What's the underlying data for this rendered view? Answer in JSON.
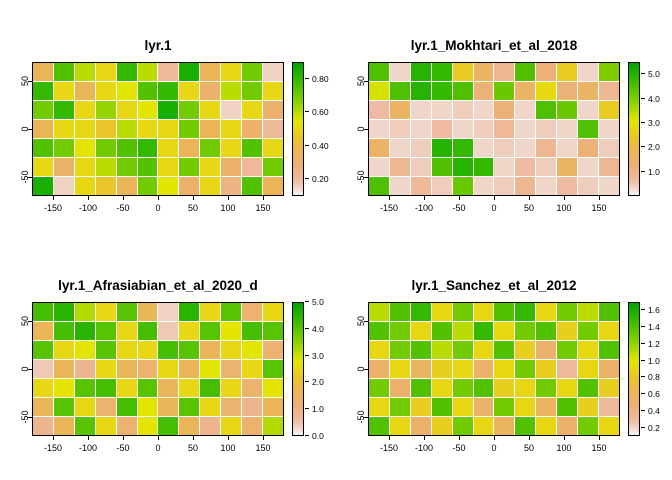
{
  "figure": {
    "background": "#ffffff",
    "grid_shape": "2x2 raster heatmap panels"
  },
  "palette": [
    "#F2F2F2",
    "#EEB99F",
    "#ECB176",
    "#EAB64E",
    "#E8C727",
    "#E6E600",
    "#A0D600",
    "#63C600",
    "#2DB600",
    "#00A600"
  ],
  "axes": {
    "x_ticks": [
      -150,
      -100,
      -50,
      0,
      50,
      100,
      150
    ],
    "y_ticks": [
      50,
      0,
      -50
    ],
    "x_range": [
      -180,
      180
    ],
    "y_range": [
      -70,
      70
    ]
  },
  "chart_data": [
    {
      "type": "heatmap",
      "title": "lyr.1",
      "zlim": [
        0.1,
        0.9
      ],
      "legend": {
        "values": [
          0.2,
          0.4,
          0.6,
          0.8
        ],
        "labels": [
          "0.20",
          "0.40",
          "0.60",
          "0.80"
        ],
        "position": "right"
      },
      "values": [
        [
          0.35,
          0.75,
          0.6,
          0.5,
          0.8,
          0.6,
          0.2,
          0.85,
          0.35,
          0.5,
          0.7,
          0.15
        ],
        [
          0.8,
          0.5,
          0.35,
          0.5,
          0.55,
          0.75,
          0.8,
          0.5,
          0.3,
          0.6,
          0.7,
          0.5
        ],
        [
          0.7,
          0.8,
          0.5,
          0.65,
          0.5,
          0.55,
          0.85,
          0.7,
          0.5,
          0.15,
          0.5,
          0.3
        ],
        [
          0.35,
          0.5,
          0.5,
          0.45,
          0.6,
          0.5,
          0.5,
          0.7,
          0.35,
          0.5,
          0.3,
          0.2
        ],
        [
          0.75,
          0.7,
          0.55,
          0.7,
          0.75,
          0.8,
          0.5,
          0.35,
          0.7,
          0.5,
          0.75,
          0.5
        ],
        [
          0.5,
          0.3,
          0.5,
          0.6,
          0.7,
          0.75,
          0.5,
          0.7,
          0.5,
          0.3,
          0.2,
          0.7
        ],
        [
          0.85,
          0.15,
          0.5,
          0.45,
          0.35,
          0.7,
          0.55,
          0.3,
          0.5,
          0.25,
          0.75,
          0.35
        ]
      ]
    },
    {
      "type": "heatmap",
      "title": "lyr.1_Mokhtari_et_al_2018",
      "zlim": [
        0,
        5.5
      ],
      "legend": {
        "values": [
          1,
          2,
          3,
          4,
          5
        ],
        "labels": [
          "1.0",
          "2.0",
          "3.0",
          "4.0",
          "5.0"
        ],
        "position": "right"
      },
      "values": [
        [
          4.5,
          0.3,
          5.0,
          4.8,
          2.5,
          1.5,
          0.8,
          4.5,
          1.2,
          2.5,
          0.3,
          4.0
        ],
        [
          3.2,
          4.5,
          5.0,
          4.8,
          4.5,
          1.2,
          4.2,
          1.5,
          2.8,
          1.2,
          1.5,
          0.8
        ],
        [
          0.6,
          1.5,
          0.3,
          0.3,
          0.4,
          0.3,
          1.2,
          0.3,
          4.5,
          4.2,
          0.3,
          2.5
        ],
        [
          0.3,
          0.4,
          0.3,
          0.6,
          0.3,
          0.4,
          0.7,
          0.3,
          0.4,
          0.3,
          4.5,
          0.3
        ],
        [
          1.5,
          0.3,
          0.4,
          5.0,
          4.8,
          0.3,
          0.4,
          0.3,
          0.8,
          0.3,
          1.2,
          0.4
        ],
        [
          0.3,
          0.8,
          0.4,
          4.5,
          5.0,
          4.8,
          0.3,
          0.6,
          0.4,
          1.5,
          0.3,
          0.8
        ],
        [
          4.5,
          0.3,
          0.7,
          0.4,
          4.2,
          0.3,
          0.4,
          0.8,
          0.3,
          0.6,
          0.4,
          0.3
        ]
      ]
    },
    {
      "type": "heatmap",
      "title": "lyr.1_Afrasiabian_et_al_2020_d",
      "zlim": [
        0,
        5
      ],
      "legend": {
        "values": [
          0,
          1,
          2,
          3,
          4,
          5
        ],
        "labels": [
          "0.0",
          "1.0",
          "2.0",
          "3.0",
          "4.0",
          "5.0"
        ],
        "position": "right"
      },
      "values": [
        [
          4.2,
          4.5,
          3.2,
          2.5,
          4.0,
          1.5,
          0.3,
          4.5,
          2.5,
          4.0,
          1.2,
          2.5
        ],
        [
          1.5,
          4.2,
          4.5,
          4.0,
          2.5,
          4.2,
          0.4,
          2.5,
          4.0,
          2.8,
          4.2,
          4.0
        ],
        [
          4.0,
          2.5,
          2.8,
          4.0,
          2.5,
          2.5,
          4.2,
          4.0,
          1.5,
          2.5,
          2.8,
          1.2
        ],
        [
          0.4,
          1.5,
          0.8,
          2.5,
          1.5,
          1.2,
          2.5,
          1.5,
          2.8,
          1.2,
          2.5,
          4.0
        ],
        [
          2.5,
          2.8,
          4.0,
          4.2,
          2.5,
          4.0,
          1.5,
          2.5,
          4.2,
          2.5,
          1.2,
          2.8
        ],
        [
          1.5,
          4.0,
          2.5,
          1.2,
          4.2,
          2.8,
          1.5,
          4.0,
          2.5,
          1.2,
          0.8,
          1.5
        ],
        [
          0.8,
          1.5,
          4.0,
          2.5,
          1.2,
          2.8,
          4.2,
          1.5,
          0.8,
          2.5,
          1.2,
          3.2
        ]
      ]
    },
    {
      "type": "heatmap",
      "title": "lyr.1_Sanchez_et_al_2012",
      "zlim": [
        0.1,
        1.7
      ],
      "legend": {
        "values": [
          0.2,
          0.4,
          0.6,
          0.8,
          1.0,
          1.2,
          1.4,
          1.6
        ],
        "labels": [
          "0.2",
          "0.4",
          "0.6",
          "0.8",
          "1.0",
          "1.2",
          "1.4",
          "1.6"
        ],
        "position": "right"
      },
      "values": [
        [
          1.1,
          1.4,
          1.5,
          0.9,
          1.3,
          0.9,
          1.4,
          1.5,
          0.9,
          1.3,
          1.1,
          1.4
        ],
        [
          1.4,
          1.3,
          0.9,
          1.4,
          1.1,
          1.5,
          0.9,
          1.3,
          1.4,
          0.85,
          1.3,
          0.9
        ],
        [
          0.9,
          1.3,
          1.4,
          1.1,
          1.3,
          0.9,
          1.4,
          0.85,
          0.5,
          1.3,
          0.9,
          1.4
        ],
        [
          0.5,
          0.9,
          0.55,
          0.85,
          0.9,
          0.5,
          0.9,
          1.3,
          0.85,
          0.3,
          0.9,
          0.5
        ],
        [
          1.3,
          0.5,
          1.4,
          0.9,
          1.3,
          1.4,
          0.85,
          0.9,
          1.3,
          0.9,
          1.4,
          0.85
        ],
        [
          0.9,
          1.3,
          0.85,
          1.4,
          0.9,
          0.5,
          1.3,
          0.9,
          0.55,
          1.4,
          0.85,
          0.3
        ],
        [
          1.4,
          0.9,
          0.5,
          0.85,
          1.3,
          0.9,
          0.55,
          1.4,
          0.9,
          0.5,
          1.3,
          0.9
        ]
      ]
    }
  ]
}
